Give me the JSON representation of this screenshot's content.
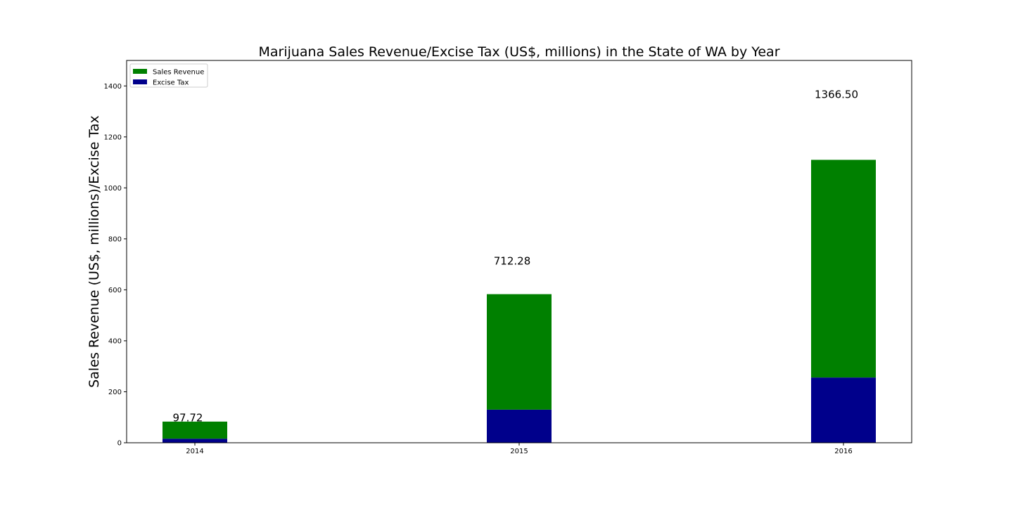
{
  "chart_data": {
    "type": "bar",
    "stacked": true,
    "title": "Marijuana Sales Revenue/Excise Tax (US$, millions) in the State of WA by Year",
    "xlabel": "",
    "ylabel": "Sales Revenue (US$, millions)/Excise Tax",
    "categories": [
      "2014",
      "2015",
      "2016"
    ],
    "series": [
      {
        "name": "Excise Tax",
        "color": "#00008b",
        "values": [
          16,
          130,
          256
        ]
      },
      {
        "name": "Sales Revenue",
        "color": "#008000",
        "values": [
          67,
          453,
          854
        ]
      }
    ],
    "legend": {
      "placement": "top-left",
      "entries": [
        {
          "name": "Sales Revenue",
          "color": "#008000"
        },
        {
          "name": "Excise Tax",
          "color": "#00008b"
        }
      ]
    },
    "annotations": [
      {
        "text": "97.72",
        "category": "2014",
        "y": 97.72
      },
      {
        "text": "712.28",
        "category": "2015",
        "y": 712.28
      },
      {
        "text": "1366.50",
        "category": "2016",
        "y": 1366.5
      }
    ],
    "ylim": [
      0,
      1500
    ],
    "yticks": [
      "0",
      "200",
      "400",
      "600",
      "800",
      "1000",
      "1200",
      "1400"
    ],
    "grid": false
  }
}
